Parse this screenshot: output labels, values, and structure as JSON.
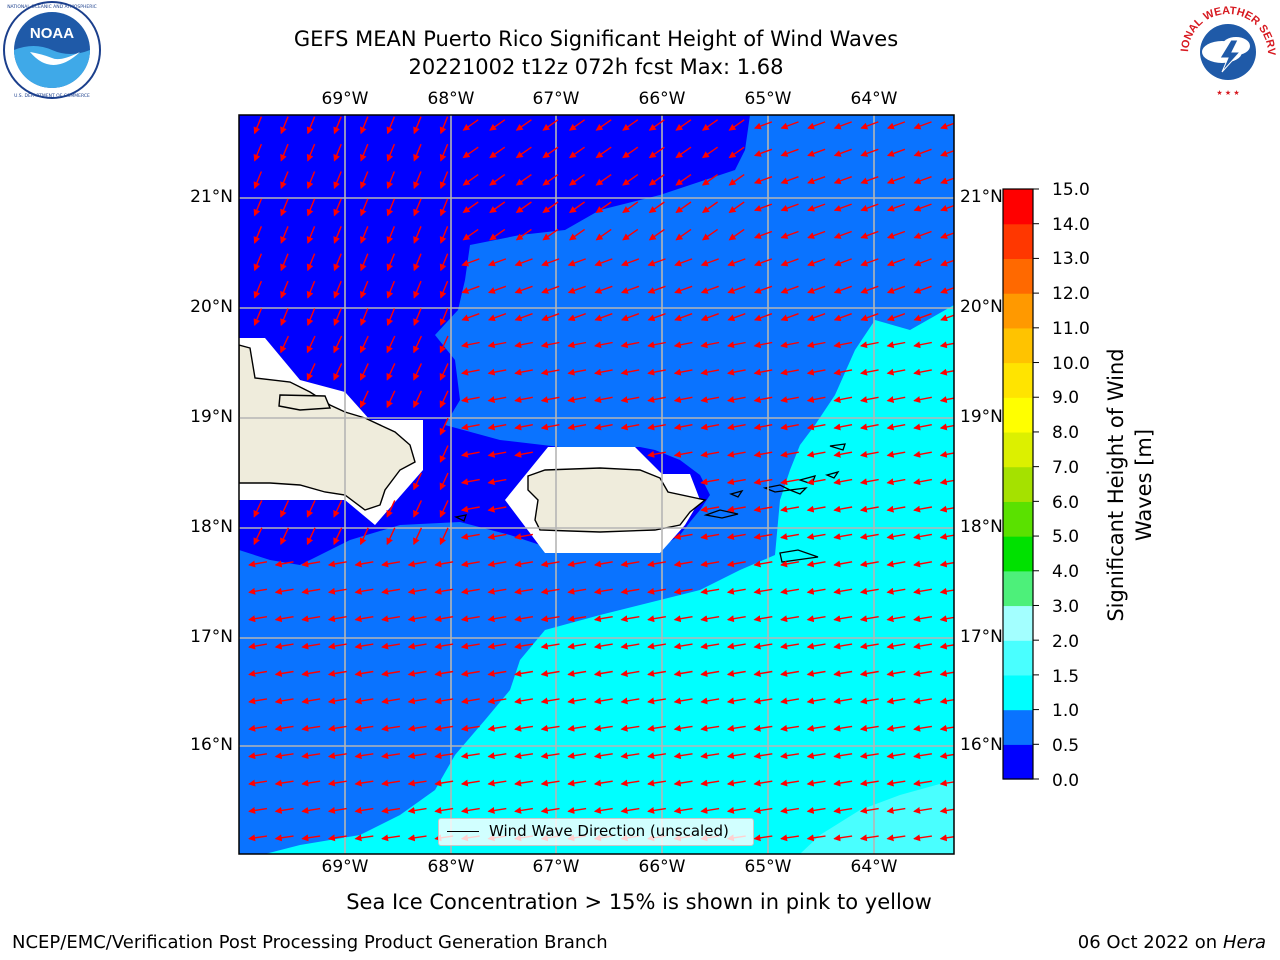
{
  "header": {
    "title_line1": "GEFS MEAN Puerto Rico Significant Height of Wind Waves",
    "title_line2": "20221002 t12z 072h fcst   Max: 1.68"
  },
  "logos": {
    "left": {
      "name": "noaa-logo",
      "text": "NOAA",
      "ring_text": "NATIONAL OCEANIC AND ATMOSPHERIC ADMINISTRATION · U.S. DEPARTMENT OF COMMERCE"
    },
    "right": {
      "name": "nws-logo",
      "ring_text": "NATIONAL WEATHER SERVICE"
    }
  },
  "map": {
    "lon_labels": [
      "69°W",
      "68°W",
      "67°W",
      "66°W",
      "65°W",
      "64°W"
    ],
    "lat_labels": [
      "21°N",
      "20°N",
      "19°N",
      "18°N",
      "17°N",
      "16°N"
    ],
    "legend_text": "Wind Wave Direction (unscaled)",
    "arrow_color": "#ff0000",
    "land_color": "#efecdc"
  },
  "colorbar": {
    "label": "Significant Height of Wind Waves [m]",
    "label_line1": "Significant Height of Wind",
    "label_line2": "Waves [m]",
    "ticks": [
      "15.0",
      "14.0",
      "13.0",
      "12.0",
      "11.0",
      "10.0",
      "9.0",
      "8.0",
      "7.0",
      "6.0",
      "5.0",
      "4.0",
      "3.0",
      "2.0",
      "1.5",
      "1.0",
      "0.5",
      "0.0"
    ],
    "colors_bottom_to_top": [
      "#0000ff",
      "#0a73ff",
      "#00ffff",
      "#49ffff",
      "#a3ffff",
      "#4df07a",
      "#00e100",
      "#5ae100",
      "#a5e100",
      "#dcf000",
      "#ffff00",
      "#ffe400",
      "#ffc300",
      "#ff9900",
      "#ff6900",
      "#ff3700",
      "#ff0000"
    ]
  },
  "caption": "Sea Ice Concentration > 15% is shown in pink to yellow",
  "footer": {
    "left": "NCEP/EMC/Verification Post Processing Product Generation Branch",
    "right_prefix": "06 Oct 2022 on ",
    "right_host": "Hera"
  }
}
